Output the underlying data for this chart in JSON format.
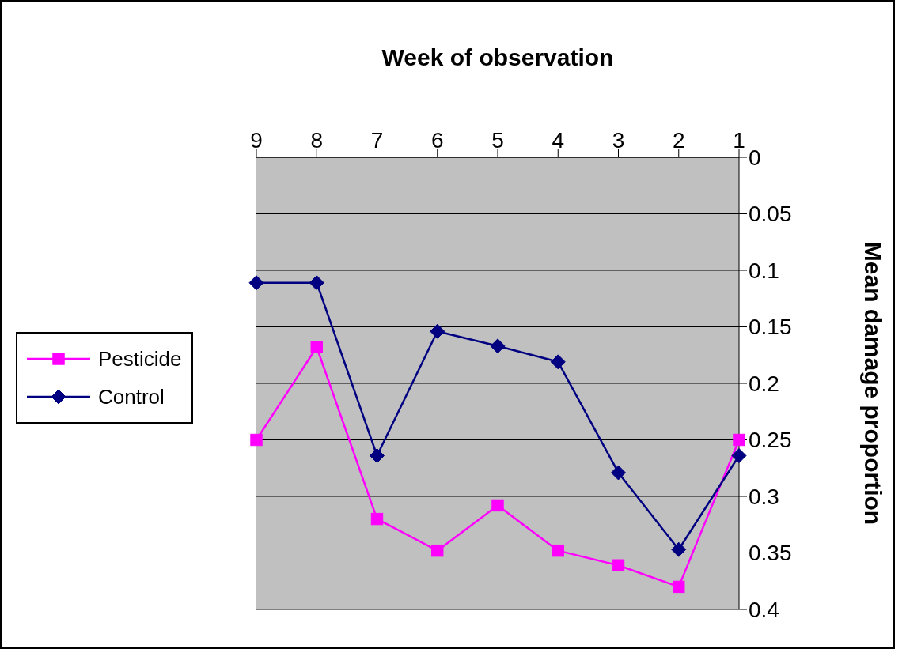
{
  "chart_data": {
    "type": "line",
    "xlabel": "Week of observation",
    "ylabel": "Mean damage proportion",
    "categories": [
      "9",
      "8",
      "7",
      "6",
      "5",
      "4",
      "3",
      "2",
      "1"
    ],
    "series": [
      {
        "name": "Pesticide",
        "color": "#ff00ff",
        "marker": "square",
        "values": [
          0.25,
          0.168,
          0.32,
          0.348,
          0.308,
          0.348,
          0.361,
          0.38,
          0.25
        ]
      },
      {
        "name": "Control",
        "color": "#000080",
        "marker": "diamond",
        "values": [
          0.111,
          0.111,
          0.264,
          0.154,
          0.167,
          0.181,
          0.279,
          0.347,
          0.264
        ]
      }
    ],
    "ylim": [
      0.4,
      0
    ],
    "yticks": [
      0,
      0.05,
      0.1,
      0.15,
      0.2,
      0.25,
      0.3,
      0.35,
      0.4
    ],
    "grid": "y",
    "legend": "left"
  }
}
